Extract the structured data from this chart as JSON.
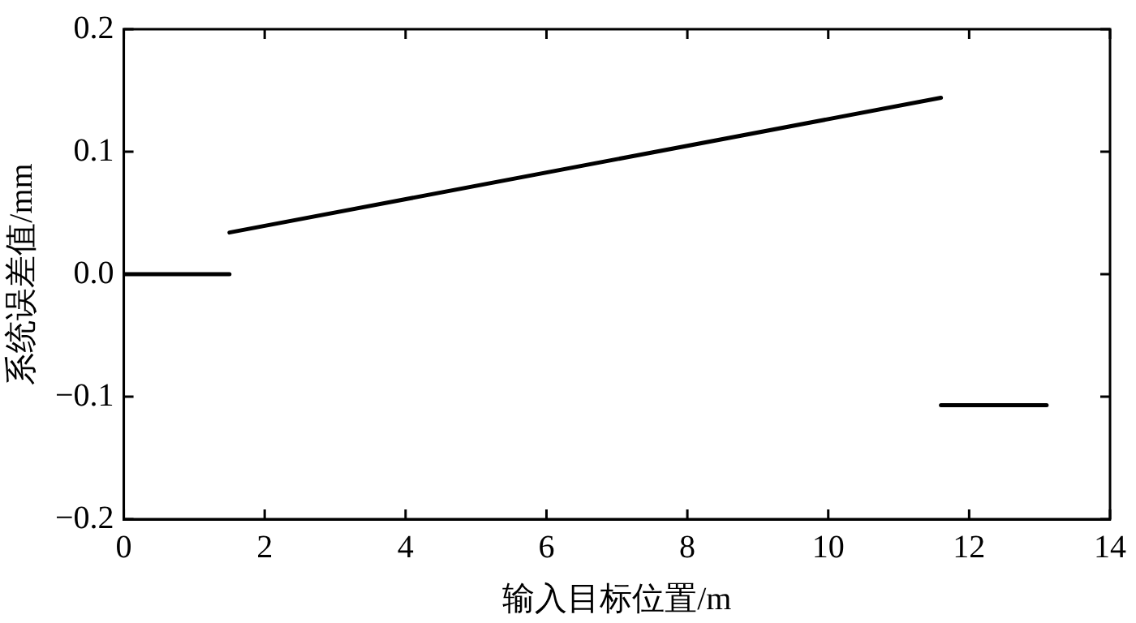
{
  "chart_data": {
    "type": "line",
    "xlabel": "输入目标位置/m",
    "ylabel": "系统误差值/mm",
    "series": [
      {
        "color": "#000000",
        "x": [
          0,
          1.5
        ],
        "values": [
          0,
          0
        ]
      },
      {
        "color": "#000000",
        "x": [
          1.5,
          11.6
        ],
        "values": [
          0.034,
          0.144
        ]
      },
      {
        "color": "#000000",
        "x": [
          11.6,
          13.1
        ],
        "values": [
          -0.107,
          -0.107
        ]
      }
    ],
    "xlim": [
      0,
      14
    ],
    "xticks": [
      0,
      2,
      4,
      6,
      8,
      10,
      12,
      14
    ],
    "ylim": [
      -0.2,
      0.2
    ],
    "yticks": [
      {
        "value": -0.2,
        "label": "−0.2"
      },
      {
        "value": -0.1,
        "label": "−0.1"
      },
      {
        "value": 0,
        "label": "0.0"
      },
      0.1,
      0.2
    ],
    "grid": false,
    "legend": false,
    "marker": "none",
    "line_style": "solid"
  }
}
